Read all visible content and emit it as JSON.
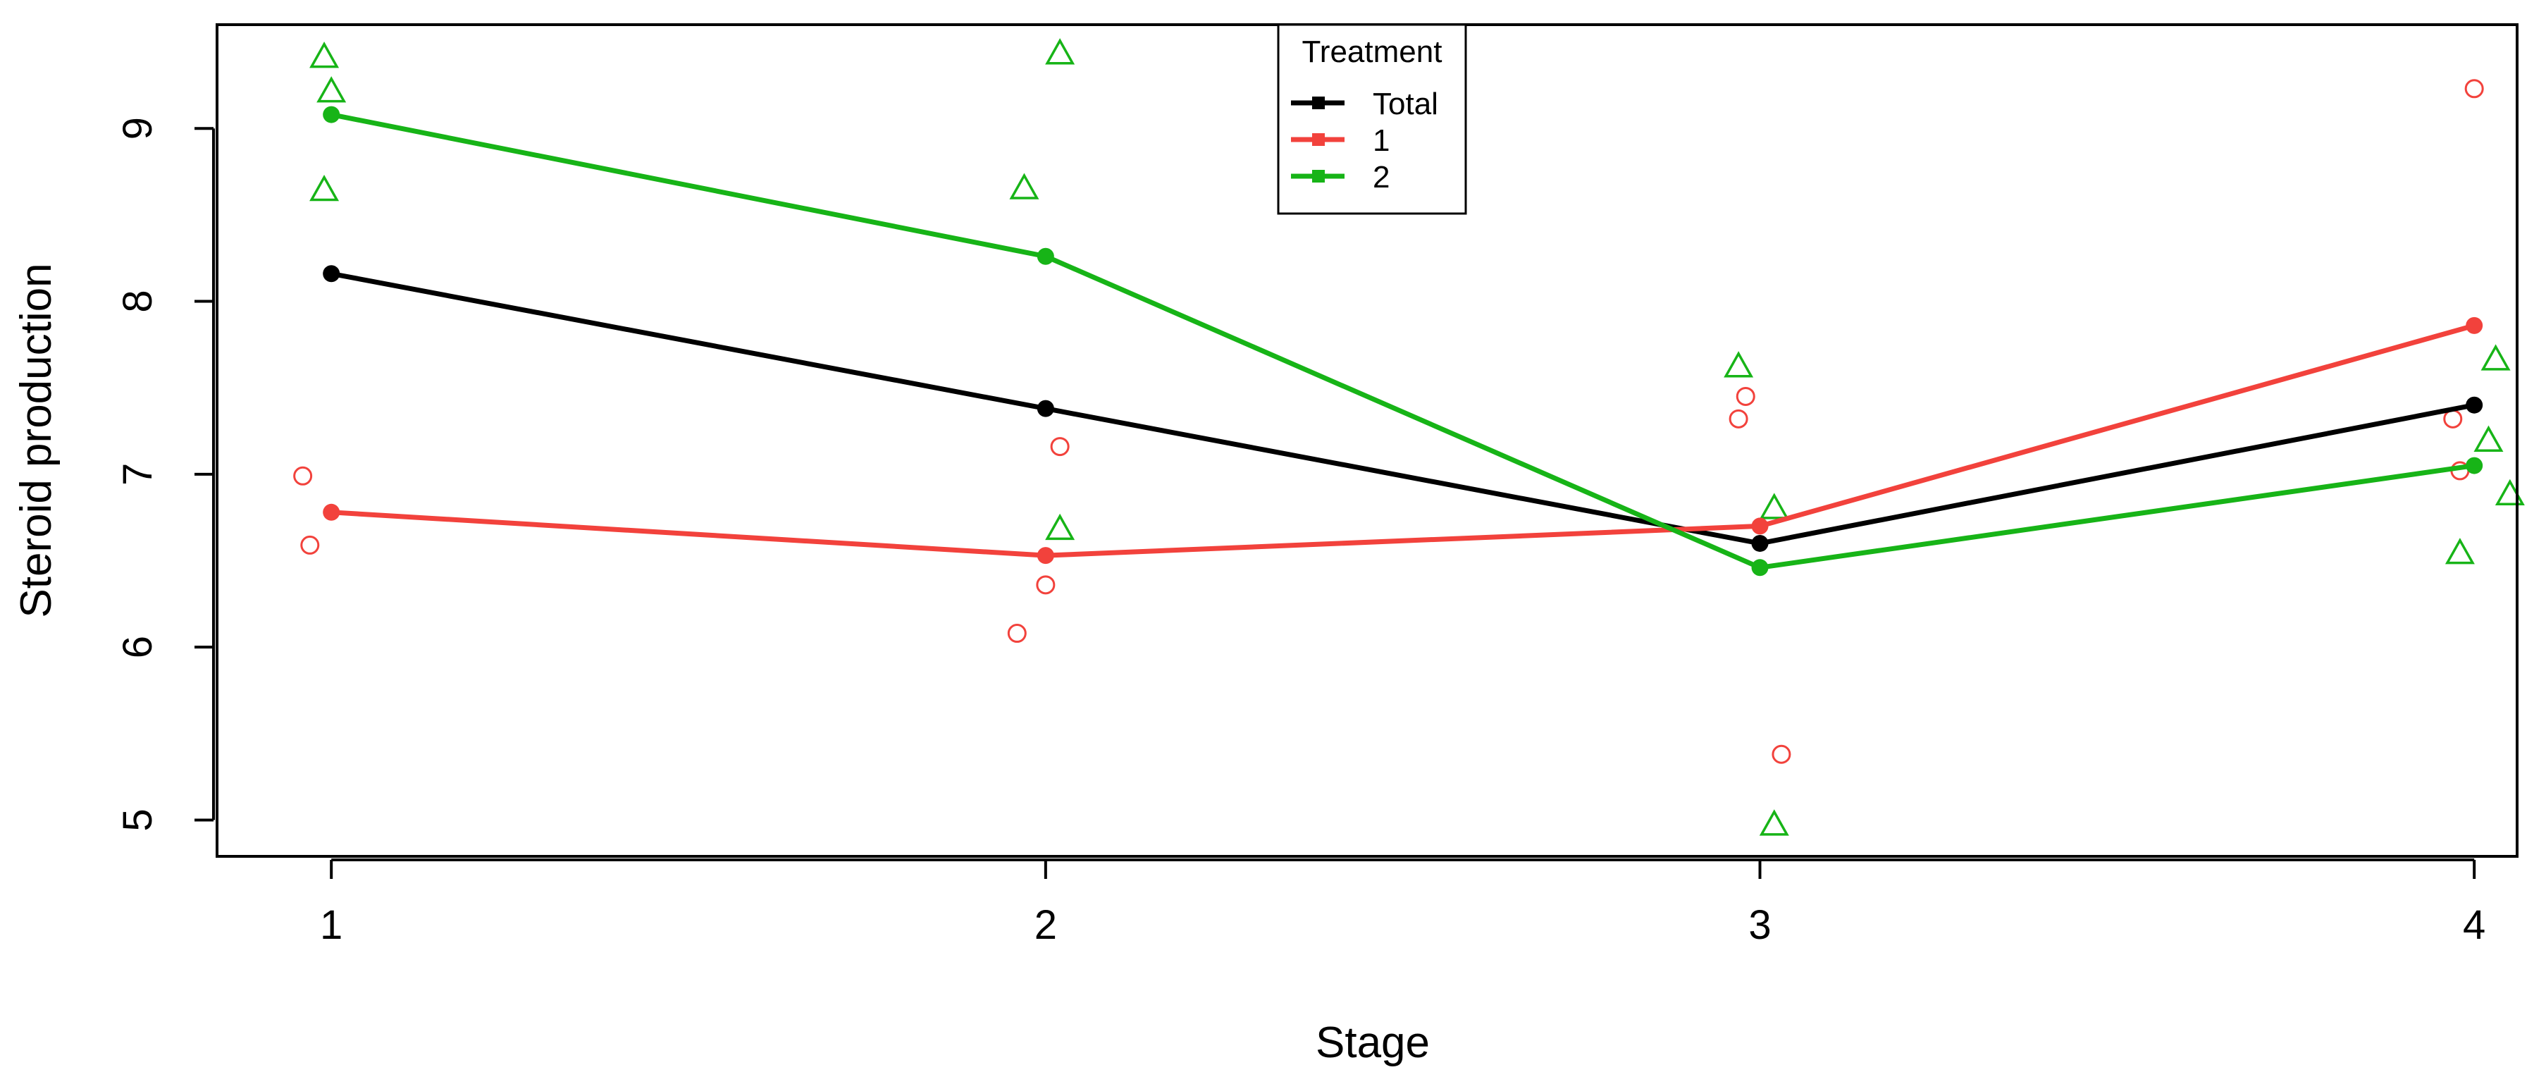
{
  "chart_data": {
    "type": "line",
    "title": "",
    "xlabel": "Stage",
    "ylabel": "Steroid production",
    "x_ticks": [
      "1",
      "2",
      "3",
      "4"
    ],
    "y_ticks": [
      "5",
      "6",
      "7",
      "8",
      "9"
    ],
    "xlim": [
      0.84,
      4.06
    ],
    "ylim": [
      4.79,
      9.6
    ],
    "grid": false,
    "legend": {
      "title": "Treatment",
      "placement": "top-center",
      "entries": [
        {
          "label": "Total",
          "color": "#000000"
        },
        {
          "label": "1",
          "color": "#f2423c"
        },
        {
          "label": "2",
          "color": "#17b417"
        }
      ]
    },
    "series": [
      {
        "name": "Total",
        "color": "#000000",
        "x": [
          1,
          2,
          3,
          4
        ],
        "y": [
          8.16,
          7.38,
          6.6,
          7.4
        ]
      },
      {
        "name": "1",
        "color": "#f2423c",
        "x": [
          1,
          2,
          3,
          4
        ],
        "y": [
          6.78,
          6.53,
          6.7,
          7.86
        ]
      },
      {
        "name": "2",
        "color": "#17b417",
        "x": [
          1,
          2,
          3,
          4
        ],
        "y": [
          9.08,
          8.26,
          6.46,
          7.05
        ]
      }
    ],
    "raw_points": [
      {
        "series": "1",
        "marker": "circle",
        "color": "#f2423c",
        "points": [
          [
            0.96,
            6.99
          ],
          [
            0.97,
            6.59
          ],
          [
            1.96,
            6.08
          ],
          [
            2.0,
            6.36
          ],
          [
            2.02,
            7.16
          ],
          [
            2.97,
            7.32
          ],
          [
            2.98,
            7.45
          ],
          [
            3.03,
            5.38
          ],
          [
            3.97,
            7.32
          ],
          [
            3.98,
            7.02
          ],
          [
            4.0,
            9.23
          ]
        ]
      },
      {
        "series": "2",
        "marker": "triangle",
        "color": "#17b417",
        "points": [
          [
            0.99,
            9.41
          ],
          [
            1.0,
            9.21
          ],
          [
            0.99,
            8.64
          ],
          [
            1.97,
            8.65
          ],
          [
            2.02,
            9.43
          ],
          [
            2.02,
            6.68
          ],
          [
            2.97,
            7.62
          ],
          [
            3.02,
            4.97
          ],
          [
            3.02,
            6.8
          ],
          [
            3.98,
            6.54
          ],
          [
            4.02,
            7.19
          ],
          [
            4.03,
            7.66
          ],
          [
            4.05,
            6.88
          ]
        ]
      }
    ]
  }
}
